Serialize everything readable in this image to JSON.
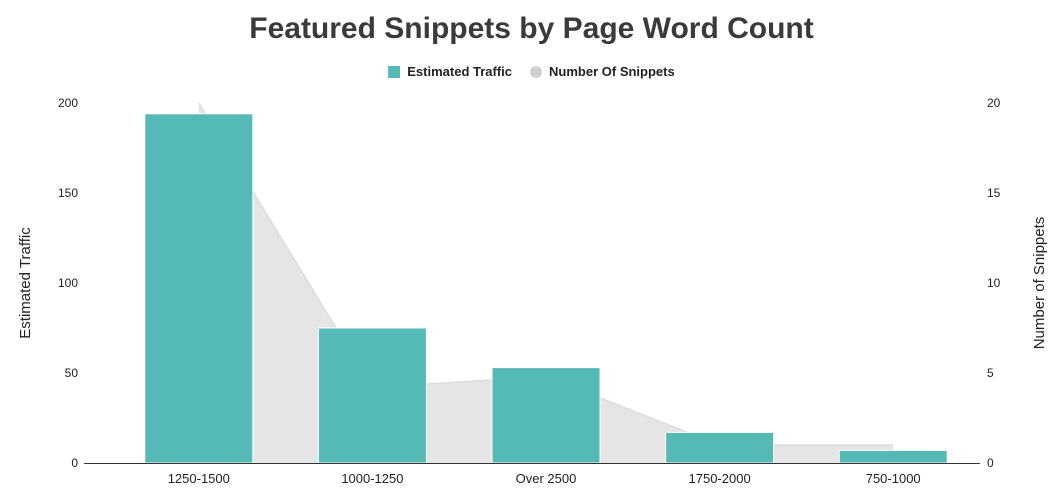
{
  "chart_data": {
    "type": "bar",
    "title": "Featured Snippets by Page Word Count",
    "categories": [
      "1250-1500",
      "1000-1250",
      "Over 2500",
      "1750-2000",
      "750-1000"
    ],
    "series": [
      {
        "name": "Estimated Traffic",
        "type": "bar",
        "axis": "left",
        "color": "#55b9b6",
        "values": [
          194,
          75,
          53,
          17,
          7
        ]
      },
      {
        "name": "Number Of Snippets",
        "type": "area",
        "axis": "right",
        "color": "#e5e5e5",
        "values": [
          20,
          4.2,
          4.8,
          1,
          1
        ]
      }
    ],
    "ylabel": "Estimated Traffic",
    "y2label": "Number of Snippets",
    "ylim": [
      0,
      200
    ],
    "y2lim": [
      0,
      20
    ],
    "yticks": [
      "0",
      "50",
      "100",
      "150",
      "200"
    ],
    "y2ticks": [
      "0",
      "5",
      "10",
      "15",
      "20"
    ],
    "legend_position": "top-center",
    "grid": false
  }
}
